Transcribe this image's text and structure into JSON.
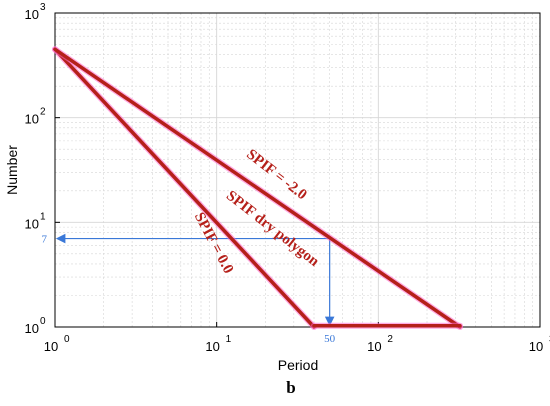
{
  "chart_data": {
    "type": "line",
    "xlabel": "Period",
    "ylabel": "Number",
    "xscale": "log",
    "yscale": "log",
    "xlim": [
      1,
      1000
    ],
    "ylim": [
      1,
      1000
    ],
    "grid": true,
    "x_ticks": [
      {
        "base": "10",
        "exp": "0",
        "value": 1
      },
      {
        "base": "10",
        "exp": "1",
        "value": 10
      },
      {
        "base": "10",
        "exp": "2",
        "value": 100
      },
      {
        "base": "10",
        "exp": "3",
        "value": 1000
      }
    ],
    "y_ticks": [
      {
        "base": "10",
        "exp": "0",
        "value": 1
      },
      {
        "base": "10",
        "exp": "1",
        "value": 10
      },
      {
        "base": "10",
        "exp": "2",
        "value": 100
      },
      {
        "base": "10",
        "exp": "3",
        "value": 1000
      }
    ],
    "series": [
      {
        "name": "SPIF = 0.0",
        "points": [
          [
            1,
            450
          ],
          [
            40,
            1
          ]
        ]
      },
      {
        "name": "SPIF = -2.0",
        "points": [
          [
            1,
            450
          ],
          [
            320,
            1
          ]
        ]
      },
      {
        "points": [
          [
            40,
            1.03
          ],
          [
            320,
            1.03
          ]
        ]
      }
    ],
    "polygon_label": "SPIF dry polygon",
    "annotation": {
      "x": 50,
      "y": 7,
      "x_label": "50",
      "y_label": "7"
    },
    "panel_label": "b",
    "colors": {
      "series": "#b5201a",
      "highlight": "#ff66cc",
      "annotation": "#3a78d8",
      "grid": "#d6d6d6"
    }
  }
}
